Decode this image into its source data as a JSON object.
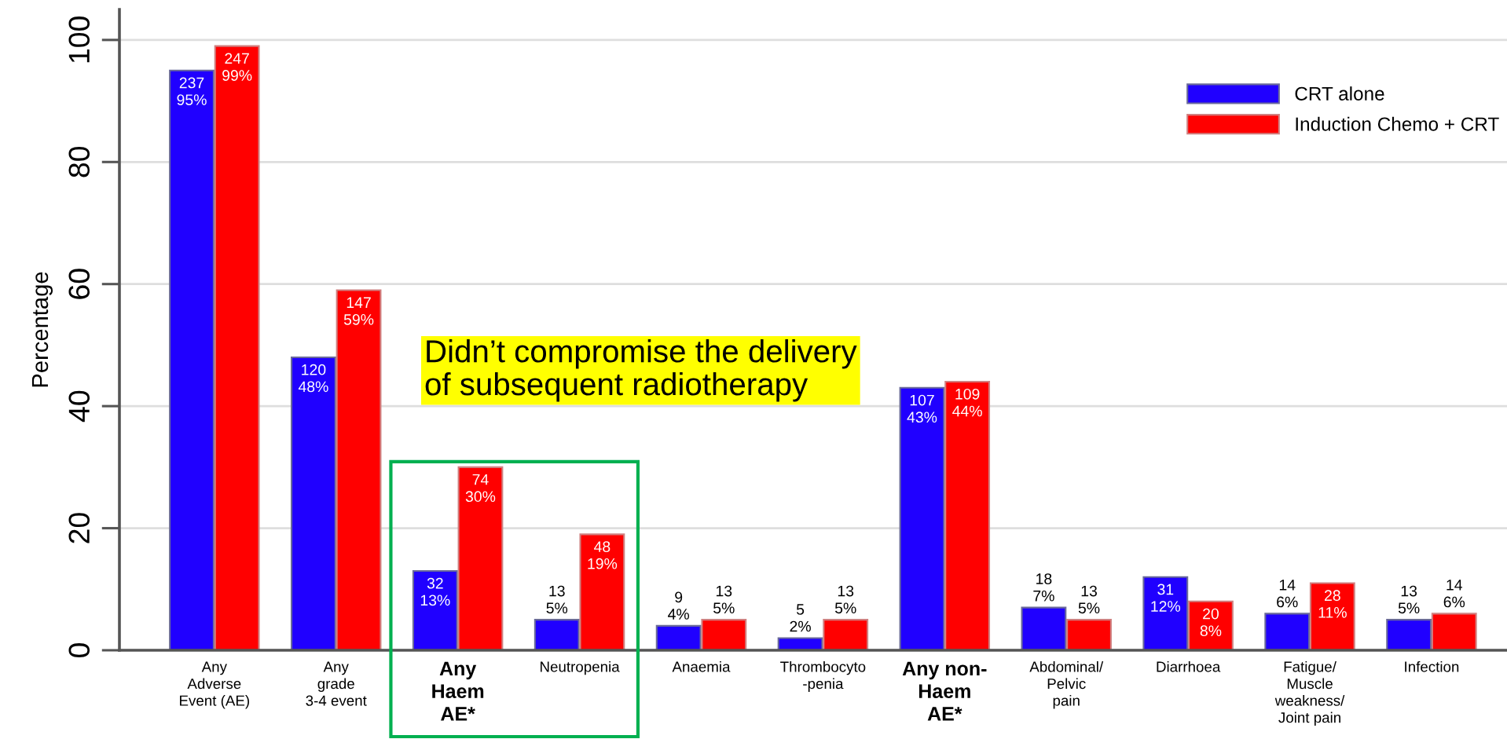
{
  "chart_data": {
    "type": "bar",
    "ylabel": "Percentage",
    "categories": [
      "Any\nAdverse\nEvent (AE)",
      "Any\ngrade\n3-4 event",
      "Any\nHaem\nAE*",
      "Neutropenia",
      "Anaemia",
      "Thrombocyto\n-penia",
      "Any non-\nHaem\nAE*",
      "Abdominal/\nPelvic\npain",
      "Diarrhoea",
      "Fatigue/\nMuscle\nweakness/\nJoint pain",
      "Infection"
    ],
    "series": [
      {
        "name": "CRT alone",
        "color": "#2000ff",
        "values": [
          95,
          48,
          13,
          5,
          4,
          2,
          43,
          7,
          12,
          6,
          5
        ],
        "value_labels": [
          "237\n95%",
          "120\n48%",
          "32\n13%",
          "13\n5%",
          "9\n4%",
          "5\n2%",
          "107\n43%",
          "18\n7%",
          "31\n12%",
          "14\n6%",
          "13\n5%"
        ]
      },
      {
        "name": "Induction Chemo + CRT",
        "color": "#ff0000",
        "values": [
          99,
          59,
          30,
          19,
          5,
          5,
          44,
          5,
          8,
          11,
          6
        ],
        "value_labels": [
          "247\n99%",
          "147\n59%",
          "74\n30%",
          "48\n19%",
          "13\n5%",
          "13\n5%",
          "109\n44%",
          "13\n5%",
          "20\n8%",
          "28\n11%",
          "14\n6%"
        ]
      }
    ],
    "ylim": [
      0,
      105
    ],
    "yticks": [
      0,
      20,
      40,
      60,
      80,
      100
    ],
    "grid": "y",
    "legend": "top right",
    "annotations": [
      "Didn’t compromise the delivery\nof subsequent radiotherapy"
    ]
  }
}
